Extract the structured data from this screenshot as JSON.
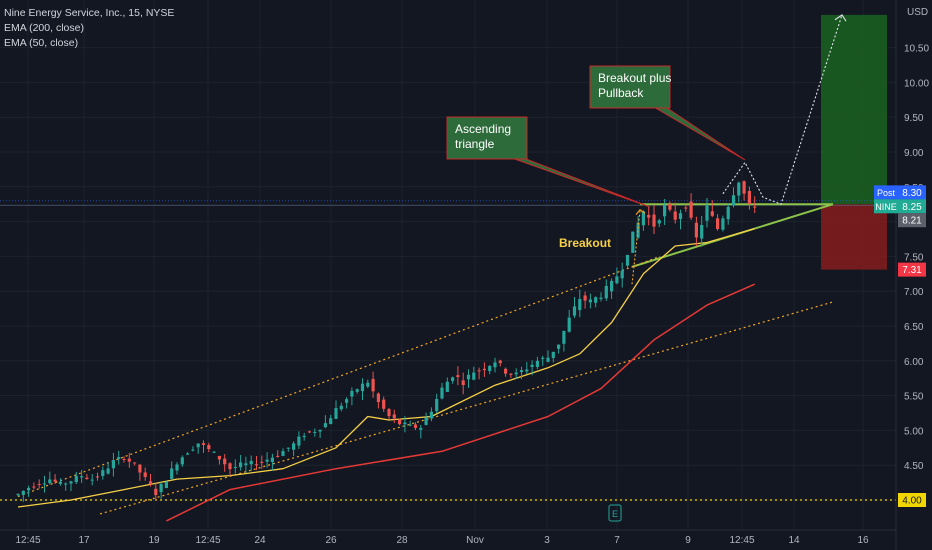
{
  "legend": {
    "symbol_line": "Nine Energy Service, Inc., 15, NYSE",
    "ema_200": "EMA (200, close)",
    "ema_50": "EMA (50, close)"
  },
  "axis": {
    "currency": "USD",
    "y_ticks": [
      "10.50",
      "10.00",
      "9.50",
      "9.00",
      "8.50",
      "8.00",
      "7.50",
      "7.00",
      "6.50",
      "6.00",
      "5.50",
      "5.00",
      "4.50",
      "4.00"
    ],
    "x_ticks": [
      "12:45",
      "17",
      "19",
      "12:45",
      "24",
      "26",
      "28",
      "Nov",
      "3",
      "7",
      "9",
      "12:45",
      "14",
      "16"
    ]
  },
  "badges": {
    "post_label": "Post",
    "post_value": "8.30",
    "ticker_label": "NINE",
    "ticker_value": "8.25",
    "value_821": "8.21",
    "stop_value": "7.31",
    "support_value": "4.00"
  },
  "annotations": {
    "ascending_triangle": [
      "Ascending",
      "triangle"
    ],
    "breakout_pullback": [
      "Breakout plus",
      "Pullback"
    ],
    "breakout": "Breakout"
  },
  "colors": {
    "background": "#131722",
    "up_candle": "#26a69a",
    "down_candle": "#ef5350",
    "ema50": "#f7d046",
    "ema200": "#e53935",
    "trendline": "#8bc34a",
    "channel": "#f5a623",
    "support": "#f2d600",
    "target_zone": "#1b5e20",
    "stop_zone": "#7f1d1d",
    "label_box": "#2e6b3a"
  },
  "chart_data": {
    "type": "candlestick",
    "title": "Nine Energy Service, Inc., 15, NYSE",
    "ylabel": "USD",
    "ylim": [
      3.75,
      11.05
    ],
    "x_ticks": [
      "12:45",
      "17",
      "19",
      "12:45",
      "24",
      "26",
      "28",
      "Nov",
      "3",
      "7",
      "9",
      "12:45",
      "14",
      "16"
    ],
    "price_path": [
      [
        0,
        4.08
      ],
      [
        2,
        4.18
      ],
      [
        4,
        4.25
      ],
      [
        6,
        4.3
      ],
      [
        8,
        4.22
      ],
      [
        10,
        4.28
      ],
      [
        12,
        4.35
      ],
      [
        14,
        4.3
      ],
      [
        16,
        4.4
      ],
      [
        18,
        4.55
      ],
      [
        20,
        4.62
      ],
      [
        22,
        4.5
      ],
      [
        24,
        4.3
      ],
      [
        26,
        4.1
      ],
      [
        28,
        4.3
      ],
      [
        30,
        4.55
      ],
      [
        32,
        4.7
      ],
      [
        34,
        4.82
      ],
      [
        36,
        4.72
      ],
      [
        38,
        4.6
      ],
      [
        40,
        4.45
      ],
      [
        42,
        4.5
      ],
      [
        44,
        4.52
      ],
      [
        46,
        4.55
      ],
      [
        48,
        4.62
      ],
      [
        50,
        4.7
      ],
      [
        52,
        4.8
      ],
      [
        54,
        4.95
      ],
      [
        56,
        5.0
      ],
      [
        58,
        5.1
      ],
      [
        60,
        5.3
      ],
      [
        62,
        5.45
      ],
      [
        64,
        5.6
      ],
      [
        66,
        5.7
      ],
      [
        68,
        5.4
      ],
      [
        70,
        5.2
      ],
      [
        72,
        5.1
      ],
      [
        74,
        5.05
      ],
      [
        76,
        5.05
      ],
      [
        78,
        5.3
      ],
      [
        80,
        5.6
      ],
      [
        82,
        5.8
      ],
      [
        84,
        5.7
      ],
      [
        86,
        5.85
      ],
      [
        88,
        5.9
      ],
      [
        90,
        6.0
      ],
      [
        92,
        5.85
      ],
      [
        94,
        5.8
      ],
      [
        96,
        5.9
      ],
      [
        98,
        6.0
      ],
      [
        100,
        6.05
      ],
      [
        102,
        6.25
      ],
      [
        104,
        6.6
      ],
      [
        106,
        6.9
      ],
      [
        108,
        6.85
      ],
      [
        110,
        6.95
      ],
      [
        112,
        7.1
      ],
      [
        114,
        7.35
      ],
      [
        116,
        7.8
      ],
      [
        118,
        8.15
      ],
      [
        120,
        7.95
      ],
      [
        122,
        8.2
      ],
      [
        124,
        8.05
      ],
      [
        126,
        8.25
      ],
      [
        128,
        7.75
      ],
      [
        130,
        8.2
      ],
      [
        132,
        7.9
      ],
      [
        134,
        8.25
      ],
      [
        136,
        8.6
      ],
      [
        137,
        8.4
      ],
      [
        138,
        8.2
      ],
      [
        139,
        8.25
      ]
    ],
    "ema50": [
      [
        0,
        3.9
      ],
      [
        10,
        4.0
      ],
      [
        20,
        4.15
      ],
      [
        30,
        4.3
      ],
      [
        40,
        4.35
      ],
      [
        50,
        4.45
      ],
      [
        60,
        4.75
      ],
      [
        66,
        5.2
      ],
      [
        70,
        5.15
      ],
      [
        78,
        5.2
      ],
      [
        90,
        5.65
      ],
      [
        100,
        5.9
      ],
      [
        106,
        6.1
      ],
      [
        112,
        6.55
      ],
      [
        118,
        7.25
      ],
      [
        124,
        7.65
      ],
      [
        130,
        7.7
      ],
      [
        139,
        7.9
      ]
    ],
    "ema200": [
      [
        28,
        3.7
      ],
      [
        40,
        4.15
      ],
      [
        60,
        4.45
      ],
      [
        80,
        4.7
      ],
      [
        100,
        5.2
      ],
      [
        110,
        5.6
      ],
      [
        120,
        6.3
      ],
      [
        130,
        6.8
      ],
      [
        139,
        7.1
      ]
    ],
    "levels": {
      "support": 4.0,
      "breakout_line": 8.25,
      "target_top": 10.97,
      "stop": 7.31,
      "current": 8.25,
      "post": 8.3,
      "prior": 8.21
    }
  }
}
